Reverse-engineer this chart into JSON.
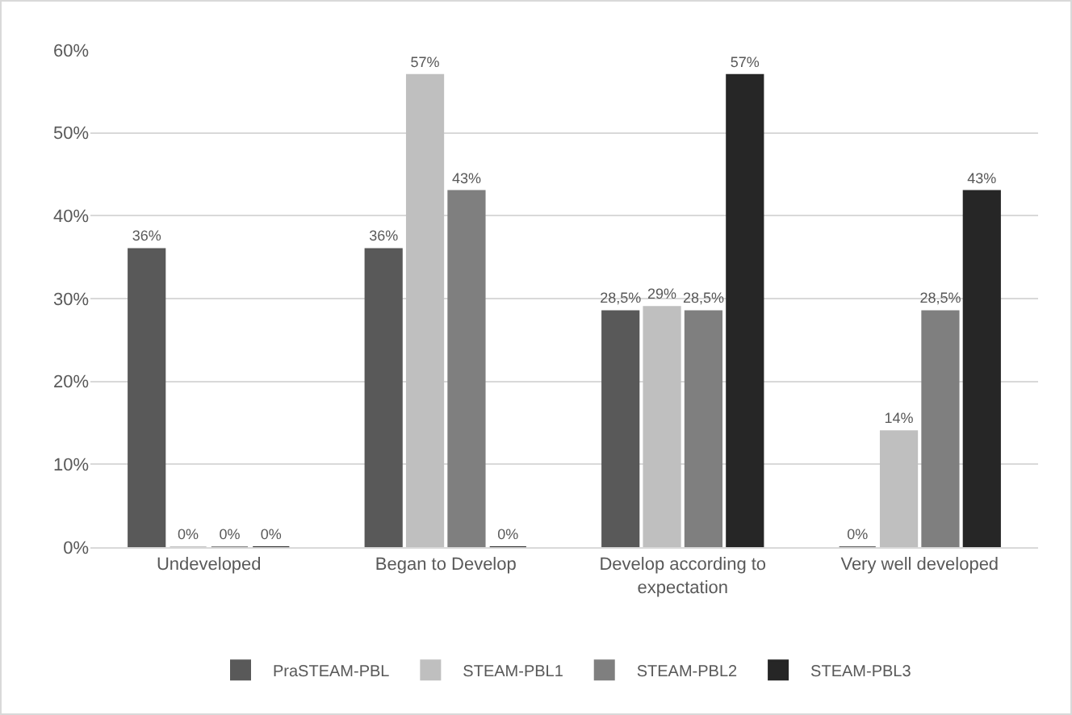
{
  "chart_data": {
    "type": "bar",
    "categories": [
      "Undeveloped",
      "Began to Develop",
      "Develop according to expectation",
      "Very well developed"
    ],
    "series": [
      {
        "name": "PraSTEAM-PBL",
        "color": "#595959",
        "values": [
          36,
          36,
          28.5,
          0
        ],
        "value_labels": [
          "36%",
          "36%",
          "28,5%",
          "0%"
        ]
      },
      {
        "name": "STEAM-PBL1",
        "color": "#bfbfbf",
        "values": [
          0,
          57,
          29,
          14
        ],
        "value_labels": [
          "0%",
          "57%",
          "29%",
          "14%"
        ]
      },
      {
        "name": "STEAM-PBL2",
        "color": "#7f7f7f",
        "values": [
          0,
          43,
          28.5,
          28.5
        ],
        "value_labels": [
          "0%",
          "43%",
          "28,5%",
          "28,5%"
        ]
      },
      {
        "name": "STEAM-PBL3",
        "color": "#262626",
        "values": [
          0,
          0,
          57,
          43
        ],
        "value_labels": [
          "0%",
          "0%",
          "57%",
          "43%"
        ]
      }
    ],
    "ylim": [
      0,
      60
    ],
    "yticks": [
      {
        "value": 0,
        "label": "0%"
      },
      {
        "value": 10,
        "label": "10%"
      },
      {
        "value": 20,
        "label": "20%"
      },
      {
        "value": 30,
        "label": "30%"
      },
      {
        "value": 40,
        "label": "40%"
      },
      {
        "value": 50,
        "label": "50%"
      },
      {
        "value": 60,
        "label": "60%"
      }
    ],
    "grid": "y",
    "legend": "bottom"
  }
}
